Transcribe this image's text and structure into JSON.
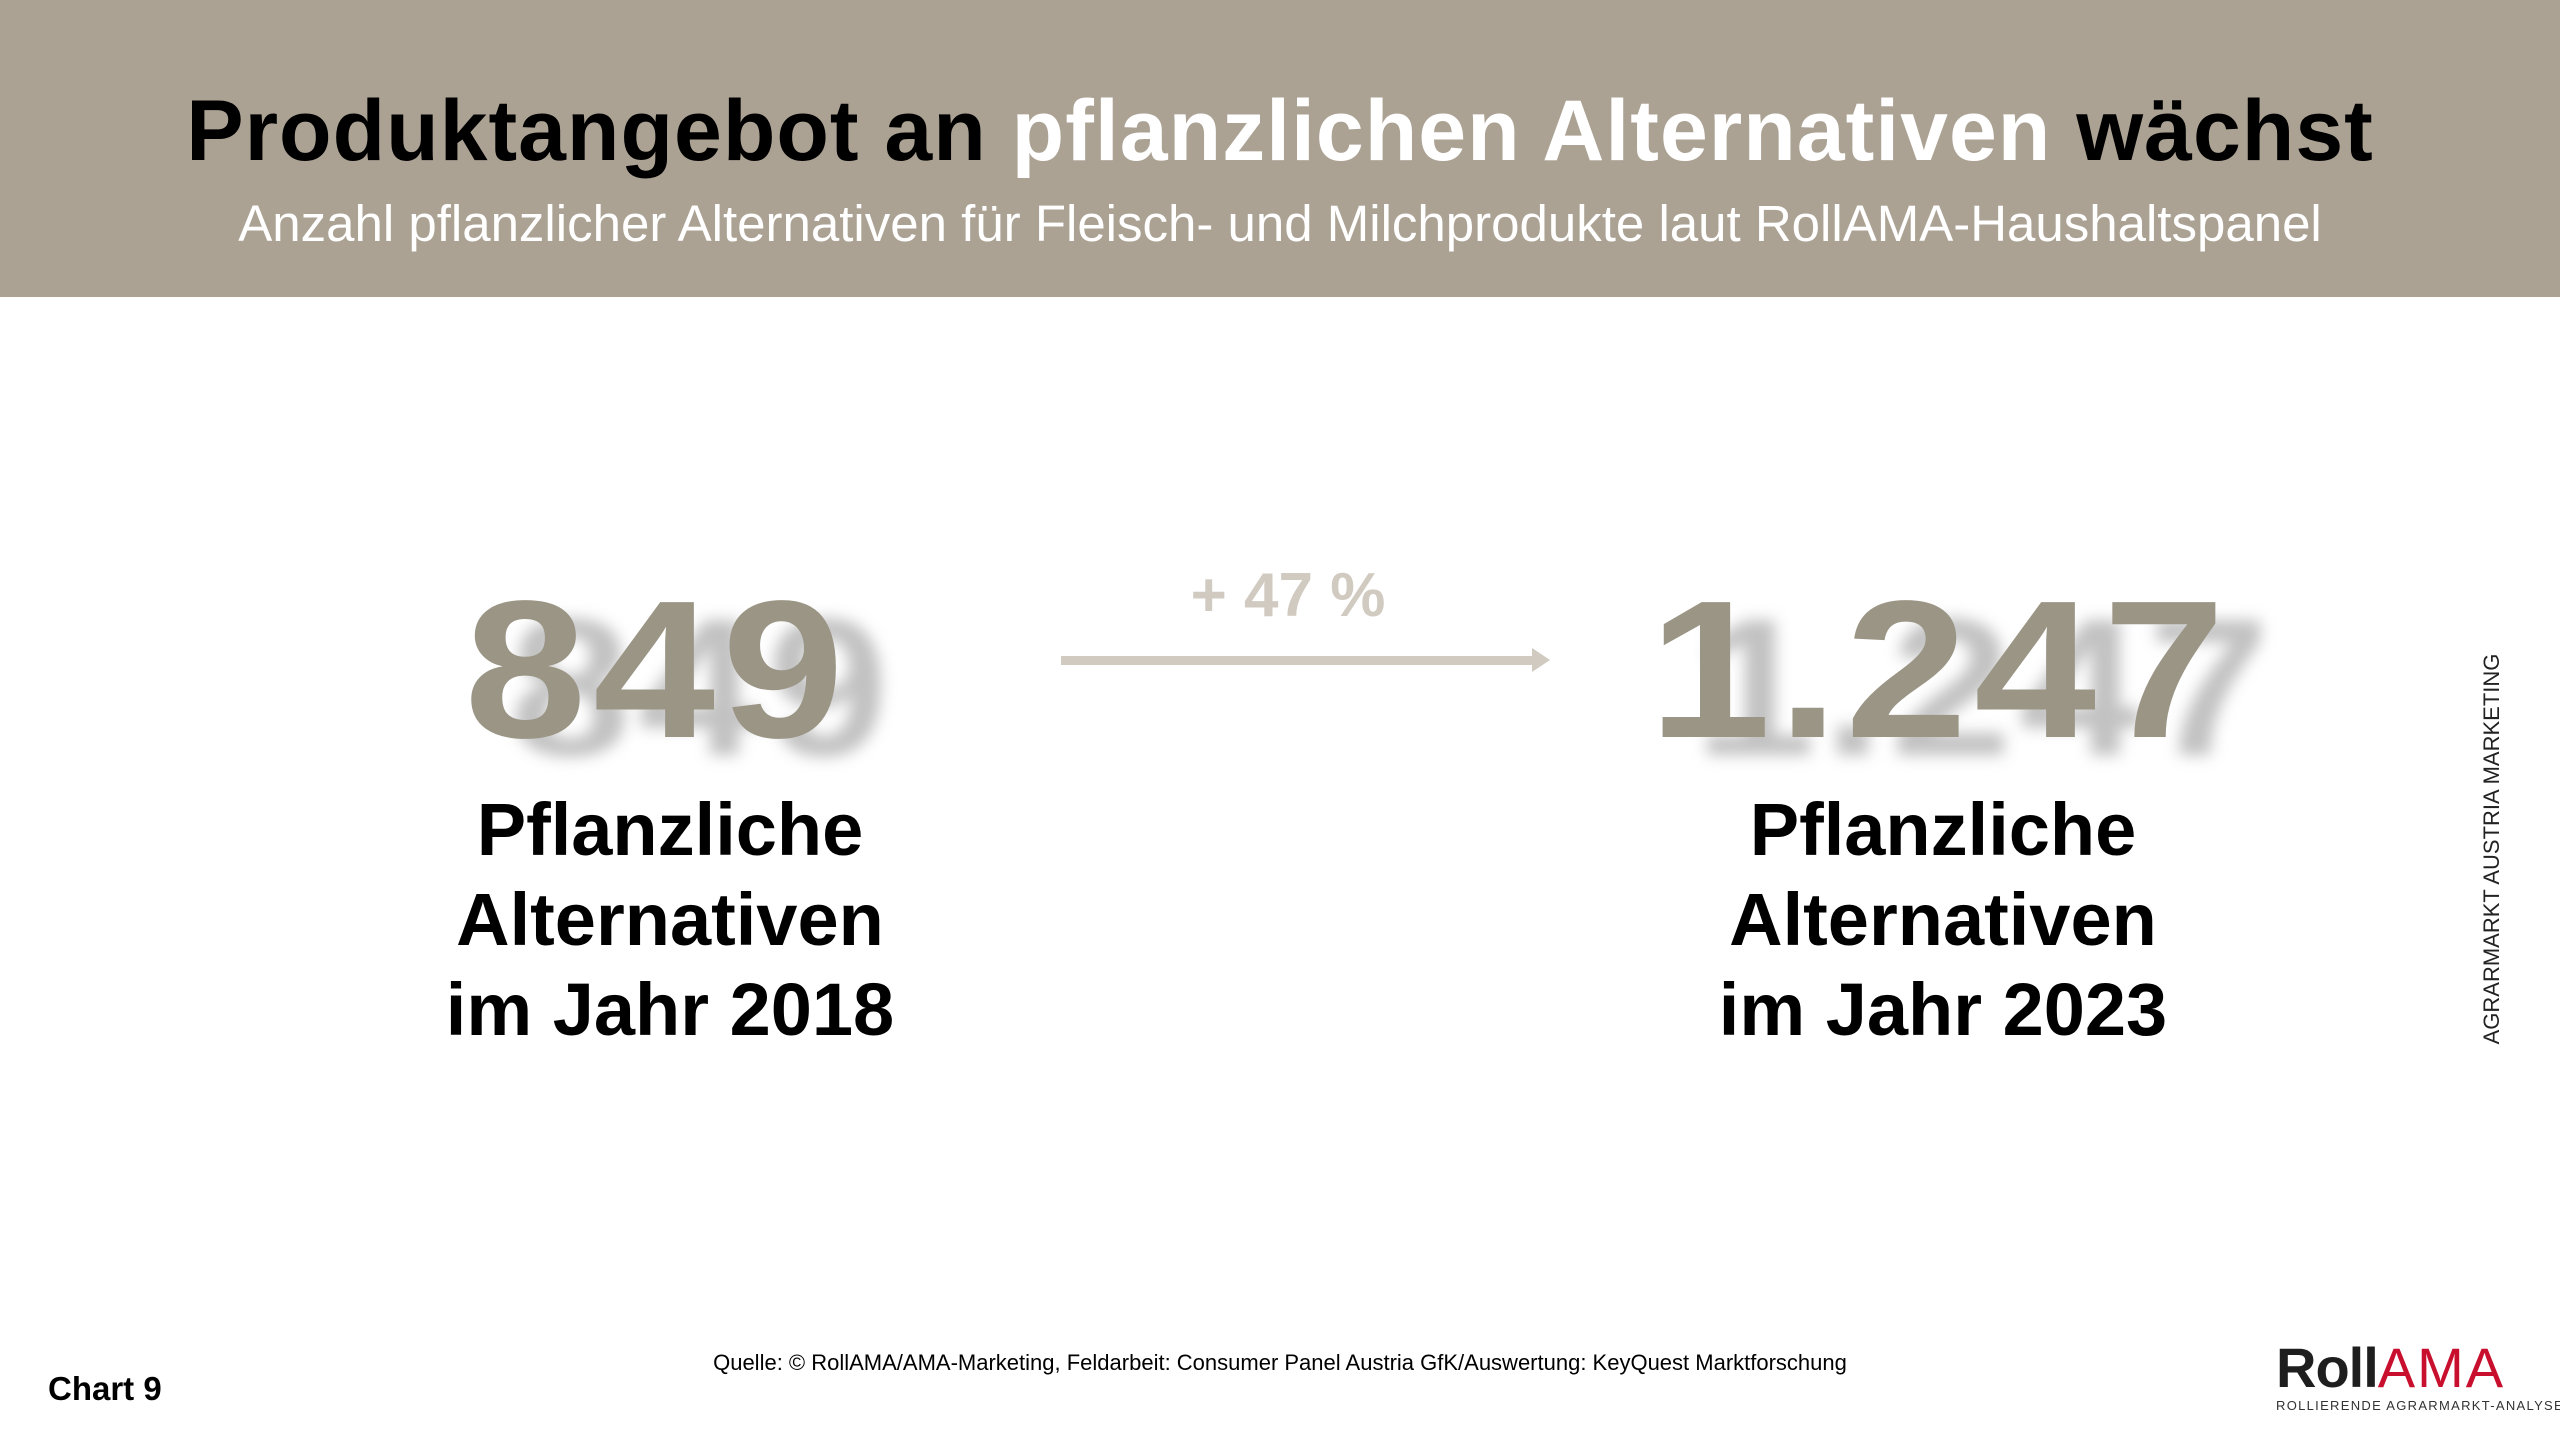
{
  "header": {
    "title_part1": "Produktangebot an ",
    "title_highlight": "pflanzlichen Alternativen",
    "title_part2": " wächst",
    "subtitle": "Anzahl pflanzlicher Alternativen für Fleisch- und Milchprodukte laut RollAMA-Haushaltspanel"
  },
  "left": {
    "value": "849",
    "label_line1": "Pflanzliche",
    "label_line2": "Alternativen",
    "label_line3": "im Jahr 2018"
  },
  "change": {
    "percent": "+ 47 %"
  },
  "right": {
    "value": "1.247",
    "label_line1": "Pflanzliche",
    "label_line2": "Alternativen",
    "label_line3": "im Jahr 2023"
  },
  "side_text": "AGRARMARKT AUSTRIA MARKETING",
  "footer": {
    "chart_number": "Chart 9",
    "source": "Quelle: © RollAMA/AMA-Marketing, Feldarbeit: Consumer Panel Austria GfK/Auswertung: KeyQuest Marktforschung",
    "logo_roll": "Roll",
    "logo_ama": "AMA",
    "logo_tagline": "ROLLIERENDE AGRARMARKT-ANALYSE"
  },
  "colors": {
    "header_bg": "#aba294",
    "number": "#9a9585",
    "arrow": "#d0cac0",
    "logo_red": "#c8102e"
  }
}
